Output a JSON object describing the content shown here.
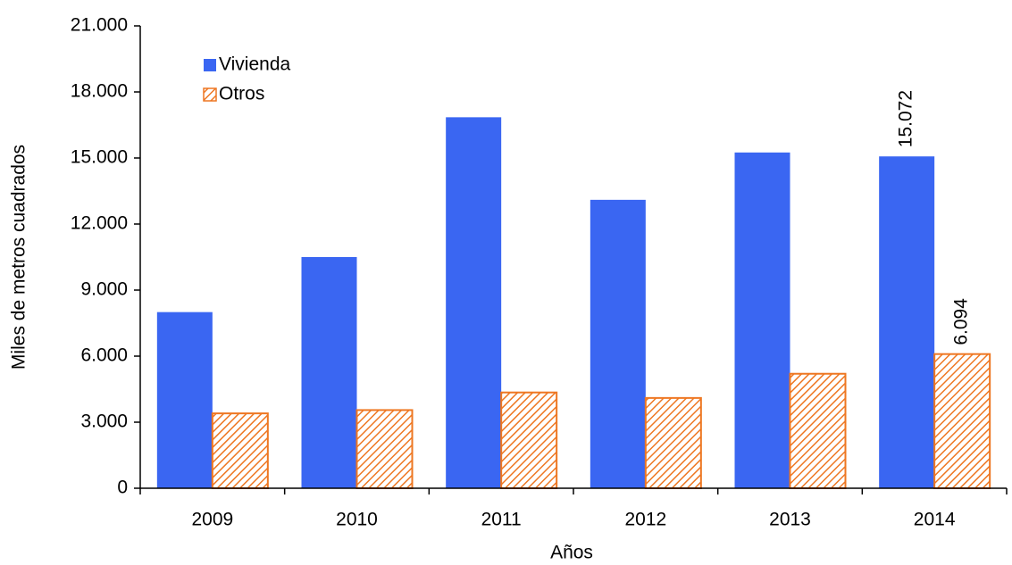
{
  "chart_data": {
    "type": "bar",
    "x_label": "Años",
    "y_label": "Miles de metros cuadrados",
    "categories": [
      "2009",
      "2010",
      "2011",
      "2012",
      "2013",
      "2014"
    ],
    "series": [
      {
        "name": "Vivienda",
        "color": "#3a66f2",
        "pattern": "solid",
        "values": [
          8000,
          10500,
          16850,
          13100,
          15250,
          15072
        ],
        "value_labels": [
          null,
          null,
          null,
          null,
          null,
          "15.072"
        ]
      },
      {
        "name": "Otros",
        "color": "#ee7722",
        "pattern": "hatch",
        "values": [
          3400,
          3550,
          4350,
          4100,
          5200,
          6094
        ],
        "value_labels": [
          null,
          null,
          null,
          null,
          null,
          "6.094"
        ]
      }
    ],
    "ylim": [
      0,
      21000
    ],
    "yticks": [
      0,
      {
        "value": 3000,
        "label": "3.000"
      },
      {
        "value": 6000,
        "label": "6.000"
      },
      {
        "value": 9000,
        "label": "9.000"
      },
      {
        "value": 12000,
        "label": "12.000"
      },
      {
        "value": 15000,
        "label": "15.000"
      },
      {
        "value": 18000,
        "label": "18.000"
      },
      {
        "value": 21000,
        "label": "21.000"
      }
    ],
    "grid": false,
    "legend": "top-left"
  }
}
